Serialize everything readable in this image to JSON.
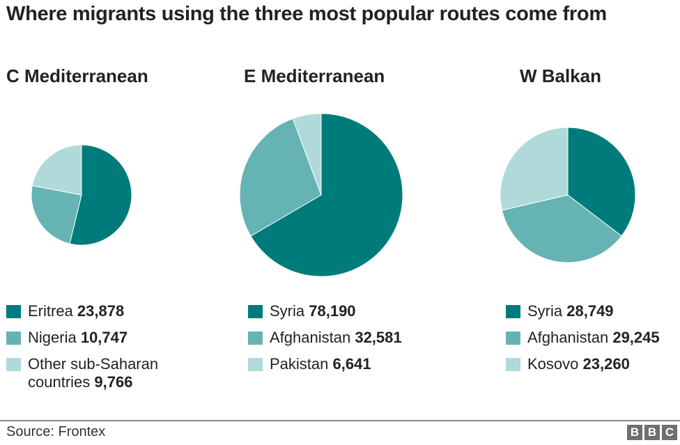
{
  "title": "Where migrants using the three most popular routes come from",
  "source": "Source: Frontex",
  "logo": [
    "B",
    "B",
    "C"
  ],
  "colors": {
    "dark": "#007b7b",
    "mid": "#66b3b3",
    "light": "#b0dada"
  },
  "charts": [
    {
      "title": "C Mediterranean",
      "items": [
        {
          "label": "Eritrea",
          "value": "23,878"
        },
        {
          "label": "Nigeria",
          "value": "10,747"
        },
        {
          "label": "Other sub-Saharan countries",
          "value": "9,766",
          "line1": "Other sub-Saharan",
          "line2": "countries"
        }
      ]
    },
    {
      "title": "E Mediterranean",
      "items": [
        {
          "label": "Syria",
          "value": "78,190"
        },
        {
          "label": "Afghanistan",
          "value": "32,581"
        },
        {
          "label": "Pakistan",
          "value": "6,641"
        }
      ]
    },
    {
      "title": "W Balkan",
      "items": [
        {
          "label": "Syria",
          "value": "28,749"
        },
        {
          "label": "Afghanistan",
          "value": "29,245"
        },
        {
          "label": "Kosovo",
          "value": "23,260"
        }
      ]
    }
  ],
  "chart_data": [
    {
      "type": "pie",
      "title": "C Mediterranean",
      "labels": [
        "Eritrea",
        "Nigeria",
        "Other sub-Saharan countries"
      ],
      "values": [
        23878,
        10747,
        9766
      ],
      "colors": [
        "#007b7b",
        "#66b3b3",
        "#b0dada"
      ]
    },
    {
      "type": "pie",
      "title": "E Mediterranean",
      "labels": [
        "Syria",
        "Afghanistan",
        "Pakistan"
      ],
      "values": [
        78190,
        32581,
        6641
      ],
      "colors": [
        "#007b7b",
        "#66b3b3",
        "#b0dada"
      ]
    },
    {
      "type": "pie",
      "title": "W Balkan",
      "labels": [
        "Syria",
        "Afghanistan",
        "Kosovo"
      ],
      "values": [
        28749,
        29245,
        23260
      ],
      "colors": [
        "#007b7b",
        "#66b3b3",
        "#b0dada"
      ]
    }
  ]
}
